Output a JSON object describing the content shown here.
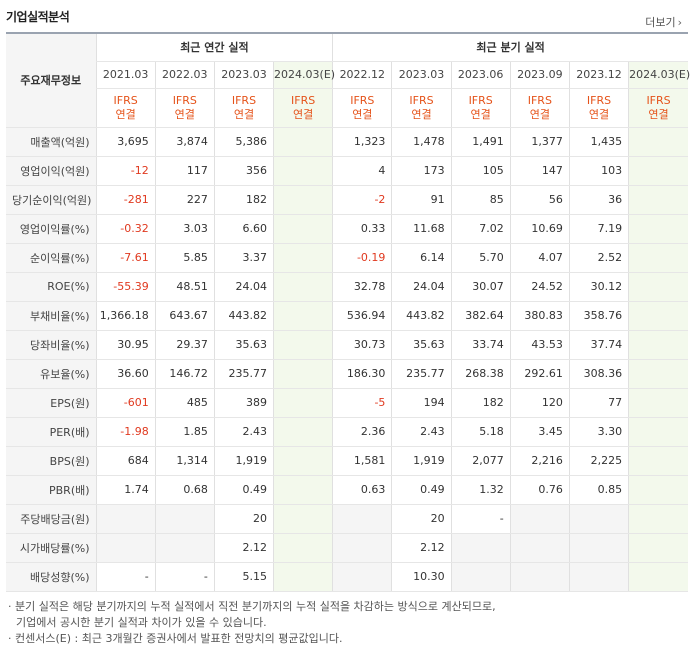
{
  "title": "기업실적분석",
  "more_label": "더보기",
  "row_header_label": "주요재무정보",
  "group_labels": {
    "annual": "최근 연간 실적",
    "quarterly": "최근 분기 실적"
  },
  "annual_periods": [
    "2021.03",
    "2022.03",
    "2023.03",
    "2024.03(E)"
  ],
  "quarter_periods": [
    "2022.12",
    "2023.03",
    "2023.06",
    "2023.09",
    "2023.12",
    "2024.03(E)"
  ],
  "basis_line1": "IFRS",
  "basis_line2": "연결",
  "rows": [
    {
      "label": "매출액(억원)",
      "annual": [
        "3,695",
        "3,874",
        "5,386",
        ""
      ],
      "quarterly": [
        "1,323",
        "1,478",
        "1,491",
        "1,377",
        "1,435",
        ""
      ]
    },
    {
      "label": "영업이익(억원)",
      "annual": [
        "-12",
        "117",
        "356",
        ""
      ],
      "quarterly": [
        "4",
        "173",
        "105",
        "147",
        "103",
        ""
      ]
    },
    {
      "label": "당기순이익(억원)",
      "annual": [
        "-281",
        "227",
        "182",
        ""
      ],
      "quarterly": [
        "-2",
        "91",
        "85",
        "56",
        "36",
        ""
      ]
    },
    {
      "label": "영업이익률(%)",
      "annual": [
        "-0.32",
        "3.03",
        "6.60",
        ""
      ],
      "quarterly": [
        "0.33",
        "11.68",
        "7.02",
        "10.69",
        "7.19",
        ""
      ]
    },
    {
      "label": "순이익률(%)",
      "annual": [
        "-7.61",
        "5.85",
        "3.37",
        ""
      ],
      "quarterly": [
        "-0.19",
        "6.14",
        "5.70",
        "4.07",
        "2.52",
        ""
      ]
    },
    {
      "label": "ROE(%)",
      "annual": [
        "-55.39",
        "48.51",
        "24.04",
        ""
      ],
      "quarterly": [
        "32.78",
        "24.04",
        "30.07",
        "24.52",
        "30.12",
        ""
      ]
    },
    {
      "label": "부채비율(%)",
      "annual": [
        "1,366.18",
        "643.67",
        "443.82",
        ""
      ],
      "quarterly": [
        "536.94",
        "443.82",
        "382.64",
        "380.83",
        "358.76",
        ""
      ]
    },
    {
      "label": "당좌비율(%)",
      "annual": [
        "30.95",
        "29.37",
        "35.63",
        ""
      ],
      "quarterly": [
        "30.73",
        "35.63",
        "33.74",
        "43.53",
        "37.74",
        ""
      ]
    },
    {
      "label": "유보율(%)",
      "annual": [
        "36.60",
        "146.72",
        "235.77",
        ""
      ],
      "quarterly": [
        "186.30",
        "235.77",
        "268.38",
        "292.61",
        "308.36",
        ""
      ]
    },
    {
      "label": "EPS(원)",
      "annual": [
        "-601",
        "485",
        "389",
        ""
      ],
      "quarterly": [
        "-5",
        "194",
        "182",
        "120",
        "77",
        ""
      ]
    },
    {
      "label": "PER(배)",
      "annual": [
        "-1.98",
        "1.85",
        "2.43",
        ""
      ],
      "quarterly": [
        "2.36",
        "2.43",
        "5.18",
        "3.45",
        "3.30",
        ""
      ]
    },
    {
      "label": "BPS(원)",
      "annual": [
        "684",
        "1,314",
        "1,919",
        ""
      ],
      "quarterly": [
        "1,581",
        "1,919",
        "2,077",
        "2,216",
        "2,225",
        ""
      ]
    },
    {
      "label": "PBR(배)",
      "annual": [
        "1.74",
        "0.68",
        "0.49",
        ""
      ],
      "quarterly": [
        "0.63",
        "0.49",
        "1.32",
        "0.76",
        "0.85",
        ""
      ]
    },
    {
      "label": "주당배당금(원)",
      "annual": [
        "",
        "",
        "20",
        ""
      ],
      "quarterly": [
        "",
        "20",
        "-",
        "",
        "",
        ""
      ]
    },
    {
      "label": "시가배당률(%)",
      "annual": [
        "",
        "",
        "2.12",
        ""
      ],
      "quarterly": [
        "",
        "2.12",
        "",
        "",
        "",
        ""
      ]
    },
    {
      "label": "배당성향(%)",
      "annual": [
        "-",
        "-",
        "5.15",
        ""
      ],
      "quarterly": [
        "",
        "10.30",
        "",
        "",
        "",
        ""
      ]
    }
  ],
  "notes": [
    "· 분기 실적은 해당 분기까지의 누적 실적에서 직전 분기까지의 누적 실적을 차감하는 방식으로 계산되므로,",
    "  기업에서 공시한 분기 실적과 차이가 있을 수 있습니다.",
    "· 컨센서스(E) : 최근 3개월간 증권사에서 발표한 전망치의 평균값입니다."
  ],
  "colors": {
    "negative": "#e0391f",
    "basis": "#e5531a",
    "estimate_bg": "#f3f9ec",
    "label_bg": "#f5f5f5"
  }
}
